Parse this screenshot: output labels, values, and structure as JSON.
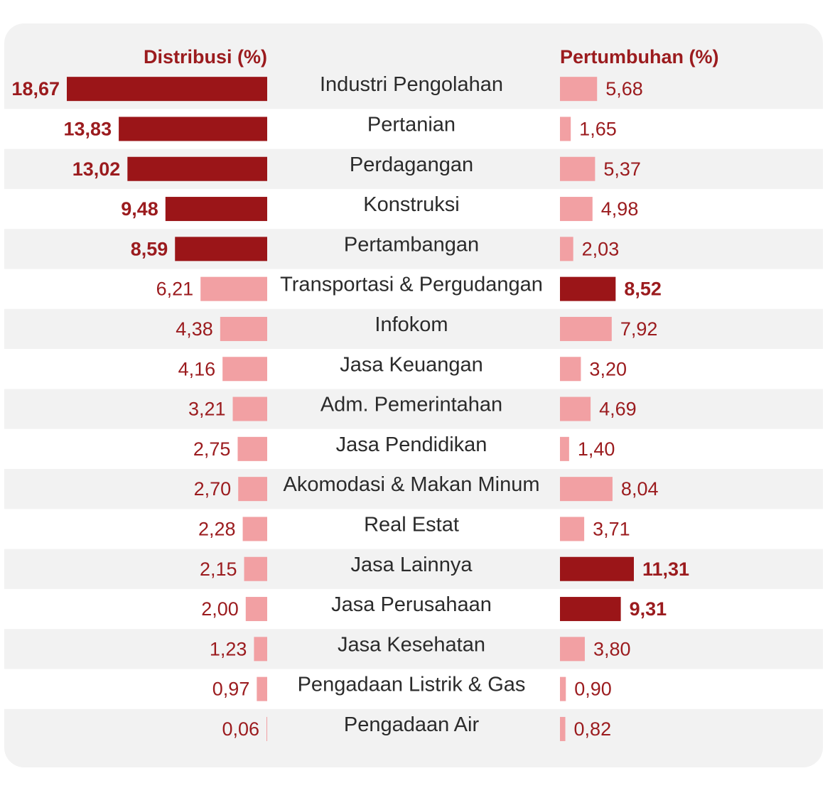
{
  "chart_data": {
    "type": "bar",
    "left_header": "Distribusi (%)",
    "right_header": "Pertumbuhan (%)",
    "categories": [
      "Industri Pengolahan",
      "Pertanian",
      "Perdagangan",
      "Konstruksi",
      "Pertambangan",
      "Transportasi & Pergudangan",
      "Infokom",
      "Jasa Keuangan",
      "Adm. Pemerintahan",
      "Jasa Pendidikan",
      "Akomodasi & Makan Minum",
      "Real Estat",
      "Jasa Lainnya",
      "Jasa Perusahaan",
      "Jasa Kesehatan",
      "Pengadaan Listrik & Gas",
      "Pengadaan Air"
    ],
    "distribution": {
      "values": [
        18.67,
        13.83,
        13.02,
        9.48,
        8.59,
        6.21,
        4.38,
        4.16,
        3.21,
        2.75,
        2.7,
        2.28,
        2.15,
        2.0,
        1.23,
        0.97,
        0.06
      ],
      "labels": [
        "18,67",
        "13,83",
        "13,02",
        "9,48",
        "8,59",
        "6,21",
        "4,38",
        "4,16",
        "3,21",
        "2,75",
        "2,70",
        "2,28",
        "2,15",
        "2,00",
        "1,23",
        "0,97",
        "0,06"
      ],
      "highlighted": [
        true,
        true,
        true,
        true,
        true,
        false,
        false,
        false,
        false,
        false,
        false,
        false,
        false,
        false,
        false,
        false,
        false
      ]
    },
    "growth": {
      "values": [
        5.68,
        1.65,
        5.37,
        4.98,
        2.03,
        8.52,
        7.92,
        3.2,
        4.69,
        1.4,
        8.04,
        3.71,
        11.31,
        9.31,
        3.8,
        0.9,
        0.82
      ],
      "labels": [
        "5,68",
        "1,65",
        "5,37",
        "4,98",
        "2,03",
        "8,52",
        "7,92",
        "3,20",
        "4,69",
        "1,40",
        "8,04",
        "3,71",
        "11,31",
        "9,31",
        "3,80",
        "0,90",
        "0,82"
      ],
      "highlighted": [
        false,
        false,
        false,
        false,
        false,
        true,
        false,
        false,
        false,
        false,
        false,
        false,
        true,
        true,
        false,
        false,
        false
      ]
    },
    "colors": {
      "highlight": "#9b1518",
      "normal": "#f2a0a3",
      "text": "#9b1b1e",
      "row_band": "#f2f2f2",
      "row_alt": "#ffffff"
    }
  }
}
